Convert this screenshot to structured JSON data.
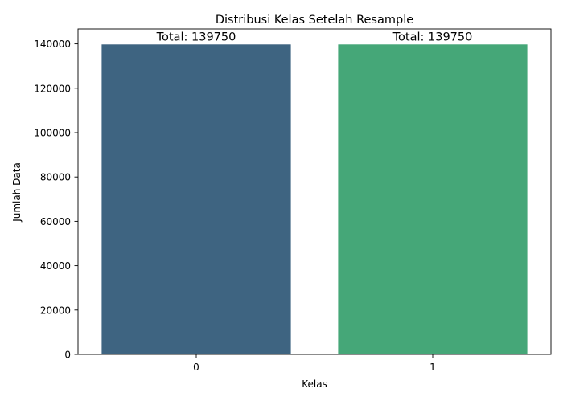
{
  "chart_data": {
    "type": "bar",
    "title": "Distribusi Kelas Setelah Resample",
    "xlabel": "Kelas",
    "ylabel": "Jumlah Data",
    "categories": [
      "0",
      "1"
    ],
    "values": [
      139750,
      139750
    ],
    "bar_labels": [
      "Total: 139750",
      "Total: 139750"
    ],
    "colors": [
      "#3e6481",
      "#45a778"
    ],
    "ylim": [
      0,
      146737.5
    ],
    "yticks": [
      0,
      20000,
      40000,
      60000,
      80000,
      100000,
      120000,
      140000
    ],
    "grid": false,
    "legend": false
  }
}
